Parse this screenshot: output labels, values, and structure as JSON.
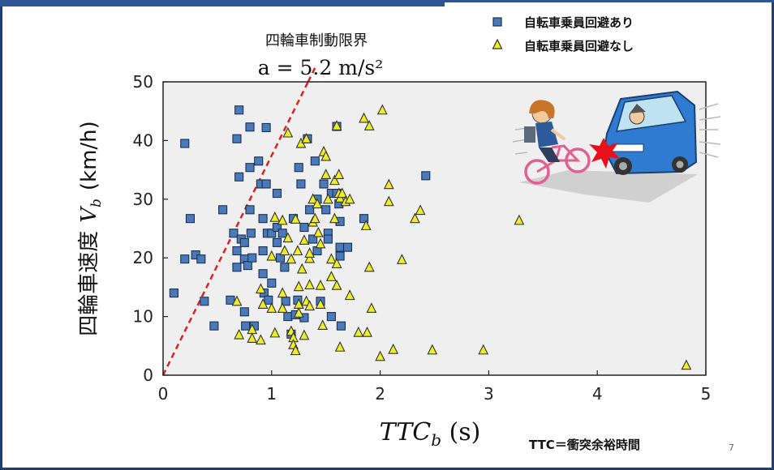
{
  "note": "TTC＝衝突余裕時間",
  "page_number": "7",
  "chart_data": {
    "type": "scatter",
    "xlabel_main": "TTC",
    "xlabel_sub": "b",
    "xlabel_unit": " (s)",
    "ylabel_text": "四輪車速度",
    "ylabel_var": "V",
    "ylabel_sub": "b",
    "ylabel_unit": "(km/h)",
    "xlim": [
      0,
      5
    ],
    "ylim": [
      0,
      50
    ],
    "xticks": [
      0,
      1,
      2,
      3,
      4,
      5
    ],
    "yticks": [
      0,
      10,
      20,
      30,
      40,
      50
    ],
    "grid": false,
    "background": "#efefef",
    "legend_position": "top-right",
    "limit_line": {
      "title": "四輪車制動限界",
      "formula": "a = 5.2 m/s²",
      "x": [
        0,
        1.4
      ],
      "y": [
        0,
        52.4
      ],
      "color": "#e02020"
    },
    "series": [
      {
        "name": "自転車乗員回避あり",
        "marker": "square",
        "color": "#4a7ab8",
        "points": [
          [
            0.1,
            14
          ],
          [
            0.2,
            39.5
          ],
          [
            0.2,
            19.8
          ],
          [
            0.25,
            26.7
          ],
          [
            0.3,
            20.5
          ],
          [
            0.35,
            19.8
          ],
          [
            0.38,
            12.6
          ],
          [
            0.47,
            8.4
          ],
          [
            0.55,
            28.2
          ],
          [
            0.62,
            12.8
          ],
          [
            0.65,
            24.2
          ],
          [
            0.68,
            40.3
          ],
          [
            0.7,
            45.2
          ],
          [
            0.7,
            33.8
          ],
          [
            0.68,
            21.2
          ],
          [
            0.68,
            18.4
          ],
          [
            0.72,
            23.2
          ],
          [
            0.75,
            22.6
          ],
          [
            0.75,
            19.8
          ],
          [
            0.78,
            18.7
          ],
          [
            0.75,
            10.8
          ],
          [
            0.76,
            8.4
          ],
          [
            0.8,
            42.3
          ],
          [
            0.8,
            35.4
          ],
          [
            0.8,
            28.2
          ],
          [
            0.81,
            24.2
          ],
          [
            0.82,
            20
          ],
          [
            0.84,
            8.4
          ],
          [
            0.88,
            36.5
          ],
          [
            0.9,
            32.6
          ],
          [
            0.92,
            26.7
          ],
          [
            0.92,
            21.2
          ],
          [
            0.92,
            17.3
          ],
          [
            0.93,
            14
          ],
          [
            0.95,
            42.2
          ],
          [
            0.95,
            32.6
          ],
          [
            0.96,
            24.2
          ],
          [
            0.97,
            12.8
          ],
          [
            1,
            24.2
          ],
          [
            1,
            15.7
          ],
          [
            1.05,
            31
          ],
          [
            1.05,
            25.2
          ],
          [
            1.05,
            22.6
          ],
          [
            1.08,
            20
          ],
          [
            1.1,
            24.2
          ],
          [
            1.12,
            18.4
          ],
          [
            1.13,
            12.6
          ],
          [
            1.15,
            10
          ],
          [
            1.18,
            7
          ],
          [
            1.2,
            26.7
          ],
          [
            1.22,
            10.3
          ],
          [
            1.24,
            12.8
          ],
          [
            1.25,
            35.4
          ],
          [
            1.27,
            32.6
          ],
          [
            1.3,
            25.2
          ],
          [
            1.3,
            9.8
          ],
          [
            1.33,
            40.3
          ],
          [
            1.35,
            28.2
          ],
          [
            1.38,
            23.2
          ],
          [
            1.4,
            36.5
          ],
          [
            1.42,
            30
          ],
          [
            1.42,
            21.2
          ],
          [
            1.45,
            12.6
          ],
          [
            1.48,
            32.6
          ],
          [
            1.5,
            28.2
          ],
          [
            1.52,
            24.2
          ],
          [
            1.52,
            23.2
          ],
          [
            1.55,
            31
          ],
          [
            1.55,
            10
          ],
          [
            1.6,
            42.4
          ],
          [
            1.6,
            31
          ],
          [
            1.62,
            29.2
          ],
          [
            1.63,
            26.2
          ],
          [
            1.63,
            21.8
          ],
          [
            1.63,
            20.3
          ],
          [
            1.64,
            8.4
          ],
          [
            1.7,
            21.8
          ],
          [
            1.85,
            26.7
          ],
          [
            2.42,
            34
          ]
        ]
      },
      {
        "name": "自転車乗員回避なし",
        "marker": "triangle",
        "color": "#eeee22",
        "points": [
          [
            0.68,
            12.6
          ],
          [
            0.7,
            6.9
          ],
          [
            0.82,
            7.8
          ],
          [
            0.82,
            6.3
          ],
          [
            0.9,
            14.7
          ],
          [
            0.9,
            6
          ],
          [
            0.92,
            12.1
          ],
          [
            1,
            20.3
          ],
          [
            1,
            11.4
          ],
          [
            1.03,
            7.2
          ],
          [
            1.03,
            26.9
          ],
          [
            1.1,
            14
          ],
          [
            1.1,
            26.4
          ],
          [
            1.1,
            11.4
          ],
          [
            1.12,
            21.2
          ],
          [
            1.15,
            41.3
          ],
          [
            1.15,
            23.4
          ],
          [
            1.18,
            19.8
          ],
          [
            1.18,
            7.5
          ],
          [
            1.2,
            6.4
          ],
          [
            1.2,
            5.2
          ],
          [
            1.22,
            26.6
          ],
          [
            1.22,
            4.2
          ],
          [
            1.24,
            21.2
          ],
          [
            1.25,
            12.1
          ],
          [
            1.25,
            10.6
          ],
          [
            1.25,
            15.1
          ],
          [
            1.27,
            39.5
          ],
          [
            1.28,
            18.1
          ],
          [
            1.3,
            23
          ],
          [
            1.3,
            6.8
          ],
          [
            1.32,
            40.3
          ],
          [
            1.32,
            12.6
          ],
          [
            1.35,
            19.9
          ],
          [
            1.35,
            15.4
          ],
          [
            1.35,
            11.8
          ],
          [
            1.35,
            20.8
          ],
          [
            1.38,
            26.1
          ],
          [
            1.38,
            30
          ],
          [
            1.4,
            26.7
          ],
          [
            1.42,
            29.2
          ],
          [
            1.43,
            24.3
          ],
          [
            1.45,
            22.4
          ],
          [
            1.45,
            15.3
          ],
          [
            1.45,
            12.1
          ],
          [
            1.47,
            8.5
          ],
          [
            1.48,
            38.1
          ],
          [
            1.5,
            37.3
          ],
          [
            1.5,
            34.2
          ],
          [
            1.52,
            30
          ],
          [
            1.55,
            16.8
          ],
          [
            1.55,
            19.8
          ],
          [
            1.58,
            33.2
          ],
          [
            1.58,
            26.7
          ],
          [
            1.6,
            42.5
          ],
          [
            1.6,
            15.3
          ],
          [
            1.6,
            19
          ],
          [
            1.62,
            34.2
          ],
          [
            1.62,
            31
          ],
          [
            1.63,
            30.2
          ],
          [
            1.63,
            4.8
          ],
          [
            1.65,
            31
          ],
          [
            1.68,
            29.6
          ],
          [
            1.72,
            30
          ],
          [
            1.72,
            13.6
          ],
          [
            1.8,
            7.3
          ],
          [
            1.85,
            43.8
          ],
          [
            1.87,
            25.5
          ],
          [
            1.88,
            7.3
          ],
          [
            1.9,
            18.4
          ],
          [
            1.9,
            42.5
          ],
          [
            1.92,
            11.4
          ],
          [
            2,
            3.2
          ],
          [
            2.02,
            45.2
          ],
          [
            2.08,
            32.5
          ],
          [
            2.08,
            29.6
          ],
          [
            2.12,
            4.4
          ],
          [
            2.2,
            19.7
          ],
          [
            2.32,
            26.7
          ],
          [
            2.37,
            28.1
          ],
          [
            2.48,
            4.3
          ],
          [
            2.95,
            4.3
          ],
          [
            3.28,
            26.4
          ],
          [
            4.82,
            1.7
          ]
        ]
      }
    ]
  }
}
